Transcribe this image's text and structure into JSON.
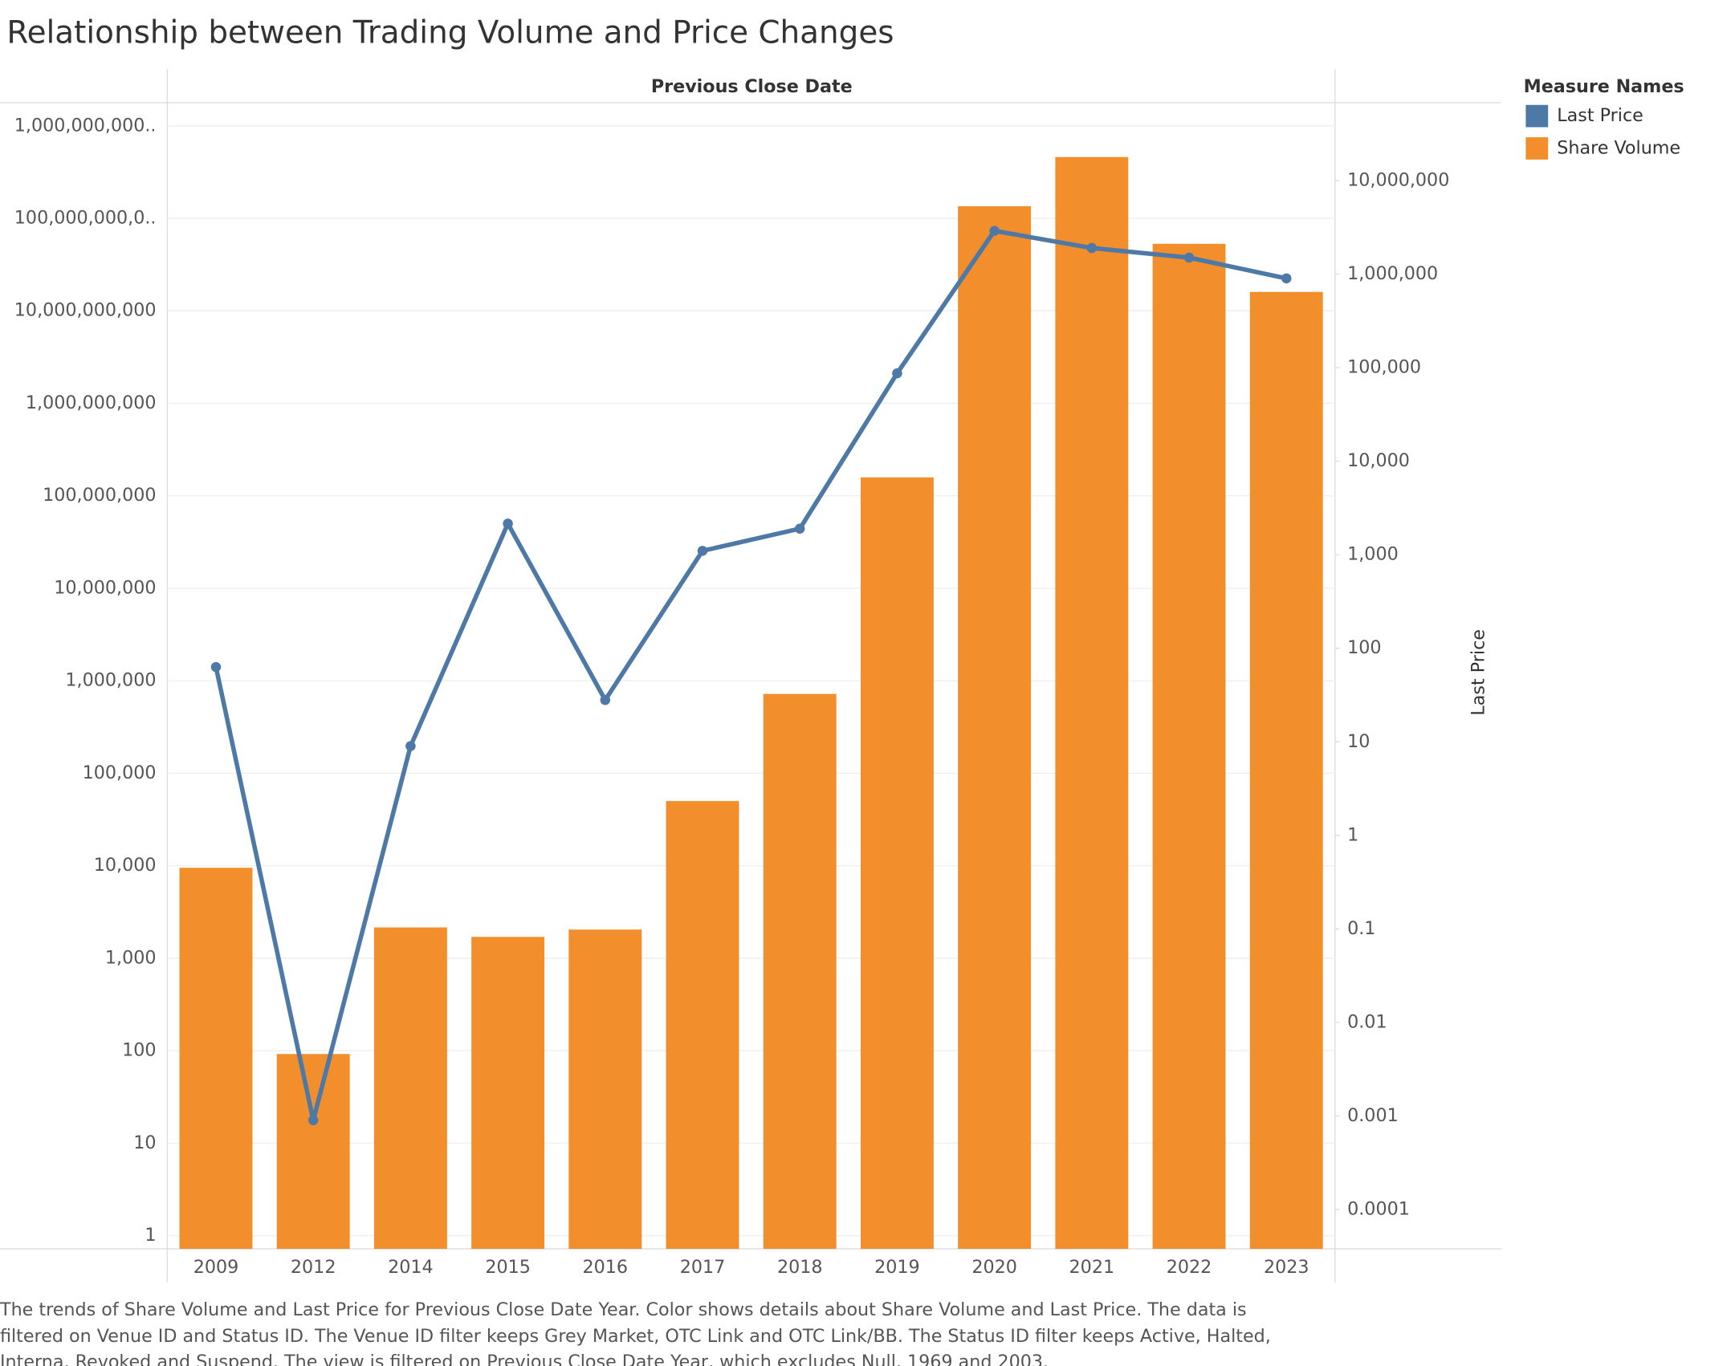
{
  "chart_data": {
    "type": "bar-line",
    "title": "Relationship between Trading Volume and Price Changes",
    "header": "Previous Close Date",
    "y2_label": "Last Price",
    "legend_title": "Measure Names",
    "legend_position": "top-right",
    "yscale": "log",
    "y2scale": "log",
    "grid": true,
    "categories": [
      "2009",
      "2012",
      "2014",
      "2015",
      "2016",
      "2017",
      "2018",
      "2019",
      "2020",
      "2021",
      "2022",
      "2023"
    ],
    "series": [
      {
        "name": "Last Price",
        "color": "#4e79a7",
        "type": "line",
        "axis": "y2",
        "values": [
          63,
          0.0009,
          9,
          2150,
          28,
          1100,
          1900,
          87000,
          2900000,
          1900000,
          1500000,
          900000
        ]
      },
      {
        "name": "Share Volume",
        "color": "#f28e2b",
        "type": "bar",
        "axis": "y",
        "values": [
          9500,
          92,
          2150,
          1700,
          2040,
          50000,
          720000,
          158000000,
          135000000000,
          460000000000,
          53000000000,
          16000000000
        ]
      }
    ],
    "ylim": [
      0.72,
      1780000000000
    ],
    "yticks": [
      1,
      10,
      100,
      {
        "value": 1000,
        "label": "1,000"
      },
      {
        "value": 10000,
        "label": "10,000"
      },
      {
        "value": 100000,
        "label": "100,000"
      },
      {
        "value": 1000000,
        "label": "1,000,000"
      },
      {
        "value": 10000000,
        "label": "10,000,000"
      },
      {
        "value": 100000000,
        "label": "100,000,000"
      },
      {
        "value": 1000000000,
        "label": "1,000,000,000"
      },
      {
        "value": 10000000000,
        "label": "10,000,000,000"
      },
      {
        "value": 100000000000,
        "label": "100,000,000,0.."
      },
      {
        "value": 1000000000000,
        "label": "1,000,000,000.."
      }
    ],
    "y2lim": [
      3.8e-05,
      68000000
    ],
    "y2ticks": [
      0.0001,
      0.001,
      0.01,
      0.1,
      1,
      10,
      100,
      {
        "value": 1000,
        "label": "1,000"
      },
      {
        "value": 10000,
        "label": "10,000"
      },
      {
        "value": 100000,
        "label": "100,000"
      },
      {
        "value": 1000000,
        "label": "1,000,000"
      },
      {
        "value": 10000000,
        "label": "10,000,000"
      }
    ],
    "caption": [
      "The trends of Share Volume and Last Price for Previous Close Date Year.  Color shows details about Share Volume and Last Price. The data is",
      "filtered on Venue ID and Status ID. The Venue ID filter keeps Grey Market, OTC Link and OTC Link/BB. The Status ID filter keeps Active, Halted,",
      "Interna, Revoked and Suspend. The view is filtered on Previous Close Date Year, which excludes Null, 1969 and 2003."
    ]
  }
}
